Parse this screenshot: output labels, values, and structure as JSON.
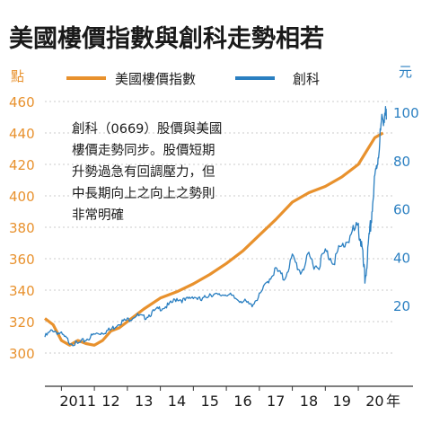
{
  "chart_data": {
    "type": "line",
    "title": "美國樓價指數與創科走勢相若",
    "left_unit": "點",
    "right_unit": "元",
    "x_unit": "年",
    "x_ticks": [
      "2011",
      "12",
      "13",
      "14",
      "15",
      "16",
      "17",
      "18",
      "19",
      "20"
    ],
    "left_ylim": [
      300,
      460
    ],
    "left_ticks": [
      300,
      320,
      340,
      360,
      380,
      400,
      420,
      440,
      460
    ],
    "right_ylim": [
      0,
      100
    ],
    "right_ticks": [
      20,
      40,
      60,
      80,
      100
    ],
    "legend_position": "top",
    "annotation": [
      "創科（0669）股價與美國",
      "樓價走勢同步。股價短期",
      "升勢過急有回調壓力，但",
      "中長期向上之向上之勢則",
      "非常明確"
    ],
    "series": [
      {
        "name": "美國樓價指數",
        "axis": "left",
        "color": "#e8912d",
        "points": [
          [
            2010.5,
            322
          ],
          [
            2010.75,
            318
          ],
          [
            2011.0,
            308
          ],
          [
            2011.25,
            305
          ],
          [
            2011.5,
            308
          ],
          [
            2011.75,
            306
          ],
          [
            2012.0,
            305
          ],
          [
            2012.25,
            308
          ],
          [
            2012.5,
            314
          ],
          [
            2012.75,
            316
          ],
          [
            2013.0,
            320
          ],
          [
            2013.5,
            328
          ],
          [
            2014.0,
            335
          ],
          [
            2014.5,
            339
          ],
          [
            2015.0,
            344
          ],
          [
            2015.5,
            350
          ],
          [
            2016.0,
            357
          ],
          [
            2016.5,
            365
          ],
          [
            2017.0,
            375
          ],
          [
            2017.5,
            385
          ],
          [
            2018.0,
            396
          ],
          [
            2018.5,
            402
          ],
          [
            2019.0,
            406
          ],
          [
            2019.5,
            412
          ],
          [
            2020.0,
            420
          ],
          [
            2020.5,
            437
          ],
          [
            2020.75,
            440
          ]
        ]
      },
      {
        "name": "創科",
        "axis": "right",
        "color": "#2a7fc1",
        "points": [
          [
            2010.5,
            7
          ],
          [
            2010.75,
            10
          ],
          [
            2011.0,
            8
          ],
          [
            2011.25,
            5
          ],
          [
            2011.5,
            4
          ],
          [
            2011.75,
            6
          ],
          [
            2012.0,
            8
          ],
          [
            2012.25,
            9
          ],
          [
            2012.5,
            10
          ],
          [
            2012.75,
            13
          ],
          [
            2013.0,
            14
          ],
          [
            2013.25,
            16
          ],
          [
            2013.5,
            15
          ],
          [
            2013.75,
            17
          ],
          [
            2014.0,
            19
          ],
          [
            2014.25,
            20
          ],
          [
            2014.5,
            23
          ],
          [
            2014.75,
            22
          ],
          [
            2015.0,
            24
          ],
          [
            2015.25,
            22
          ],
          [
            2015.5,
            25
          ],
          [
            2015.75,
            24
          ],
          [
            2016.0,
            25
          ],
          [
            2016.25,
            23
          ],
          [
            2016.5,
            22
          ],
          [
            2016.75,
            20
          ],
          [
            2017.0,
            24
          ],
          [
            2017.25,
            30
          ],
          [
            2017.5,
            35
          ],
          [
            2017.75,
            31
          ],
          [
            2018.0,
            40
          ],
          [
            2018.25,
            34
          ],
          [
            2018.5,
            40
          ],
          [
            2018.75,
            36
          ],
          [
            2019.0,
            42
          ],
          [
            2019.25,
            39
          ],
          [
            2019.5,
            44
          ],
          [
            2019.75,
            49
          ],
          [
            2020.0,
            52
          ],
          [
            2020.1,
            45
          ],
          [
            2020.2,
            30
          ],
          [
            2020.3,
            43
          ],
          [
            2020.4,
            57
          ],
          [
            2020.5,
            72
          ],
          [
            2020.6,
            82
          ],
          [
            2020.7,
            95
          ],
          [
            2020.8,
            100
          ],
          [
            2020.85,
            97
          ]
        ]
      }
    ]
  }
}
